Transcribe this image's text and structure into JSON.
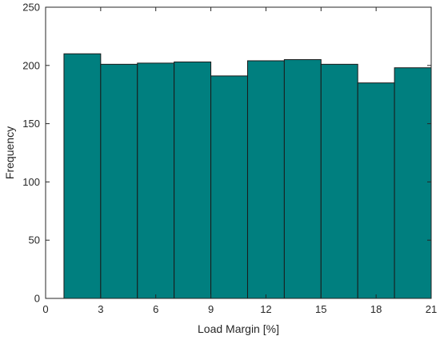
{
  "chart_data": {
    "type": "bar",
    "title": "",
    "xlabel": "Load Margin [%]",
    "ylabel": "Frequency",
    "xlim": [
      0,
      21
    ],
    "ylim": [
      0,
      250
    ],
    "xticks": [
      0,
      3,
      6,
      9,
      12,
      15,
      18,
      21
    ],
    "yticks": [
      0,
      50,
      100,
      150,
      200,
      250
    ],
    "grid": false,
    "bin_edges": [
      1,
      3,
      5,
      7,
      9,
      11,
      13,
      15,
      17,
      19,
      21
    ],
    "values": [
      210,
      201,
      202,
      203,
      191,
      204,
      205,
      201,
      185,
      198
    ],
    "bar_color": "#007f7f",
    "edge_color": "#1a1a1a"
  }
}
